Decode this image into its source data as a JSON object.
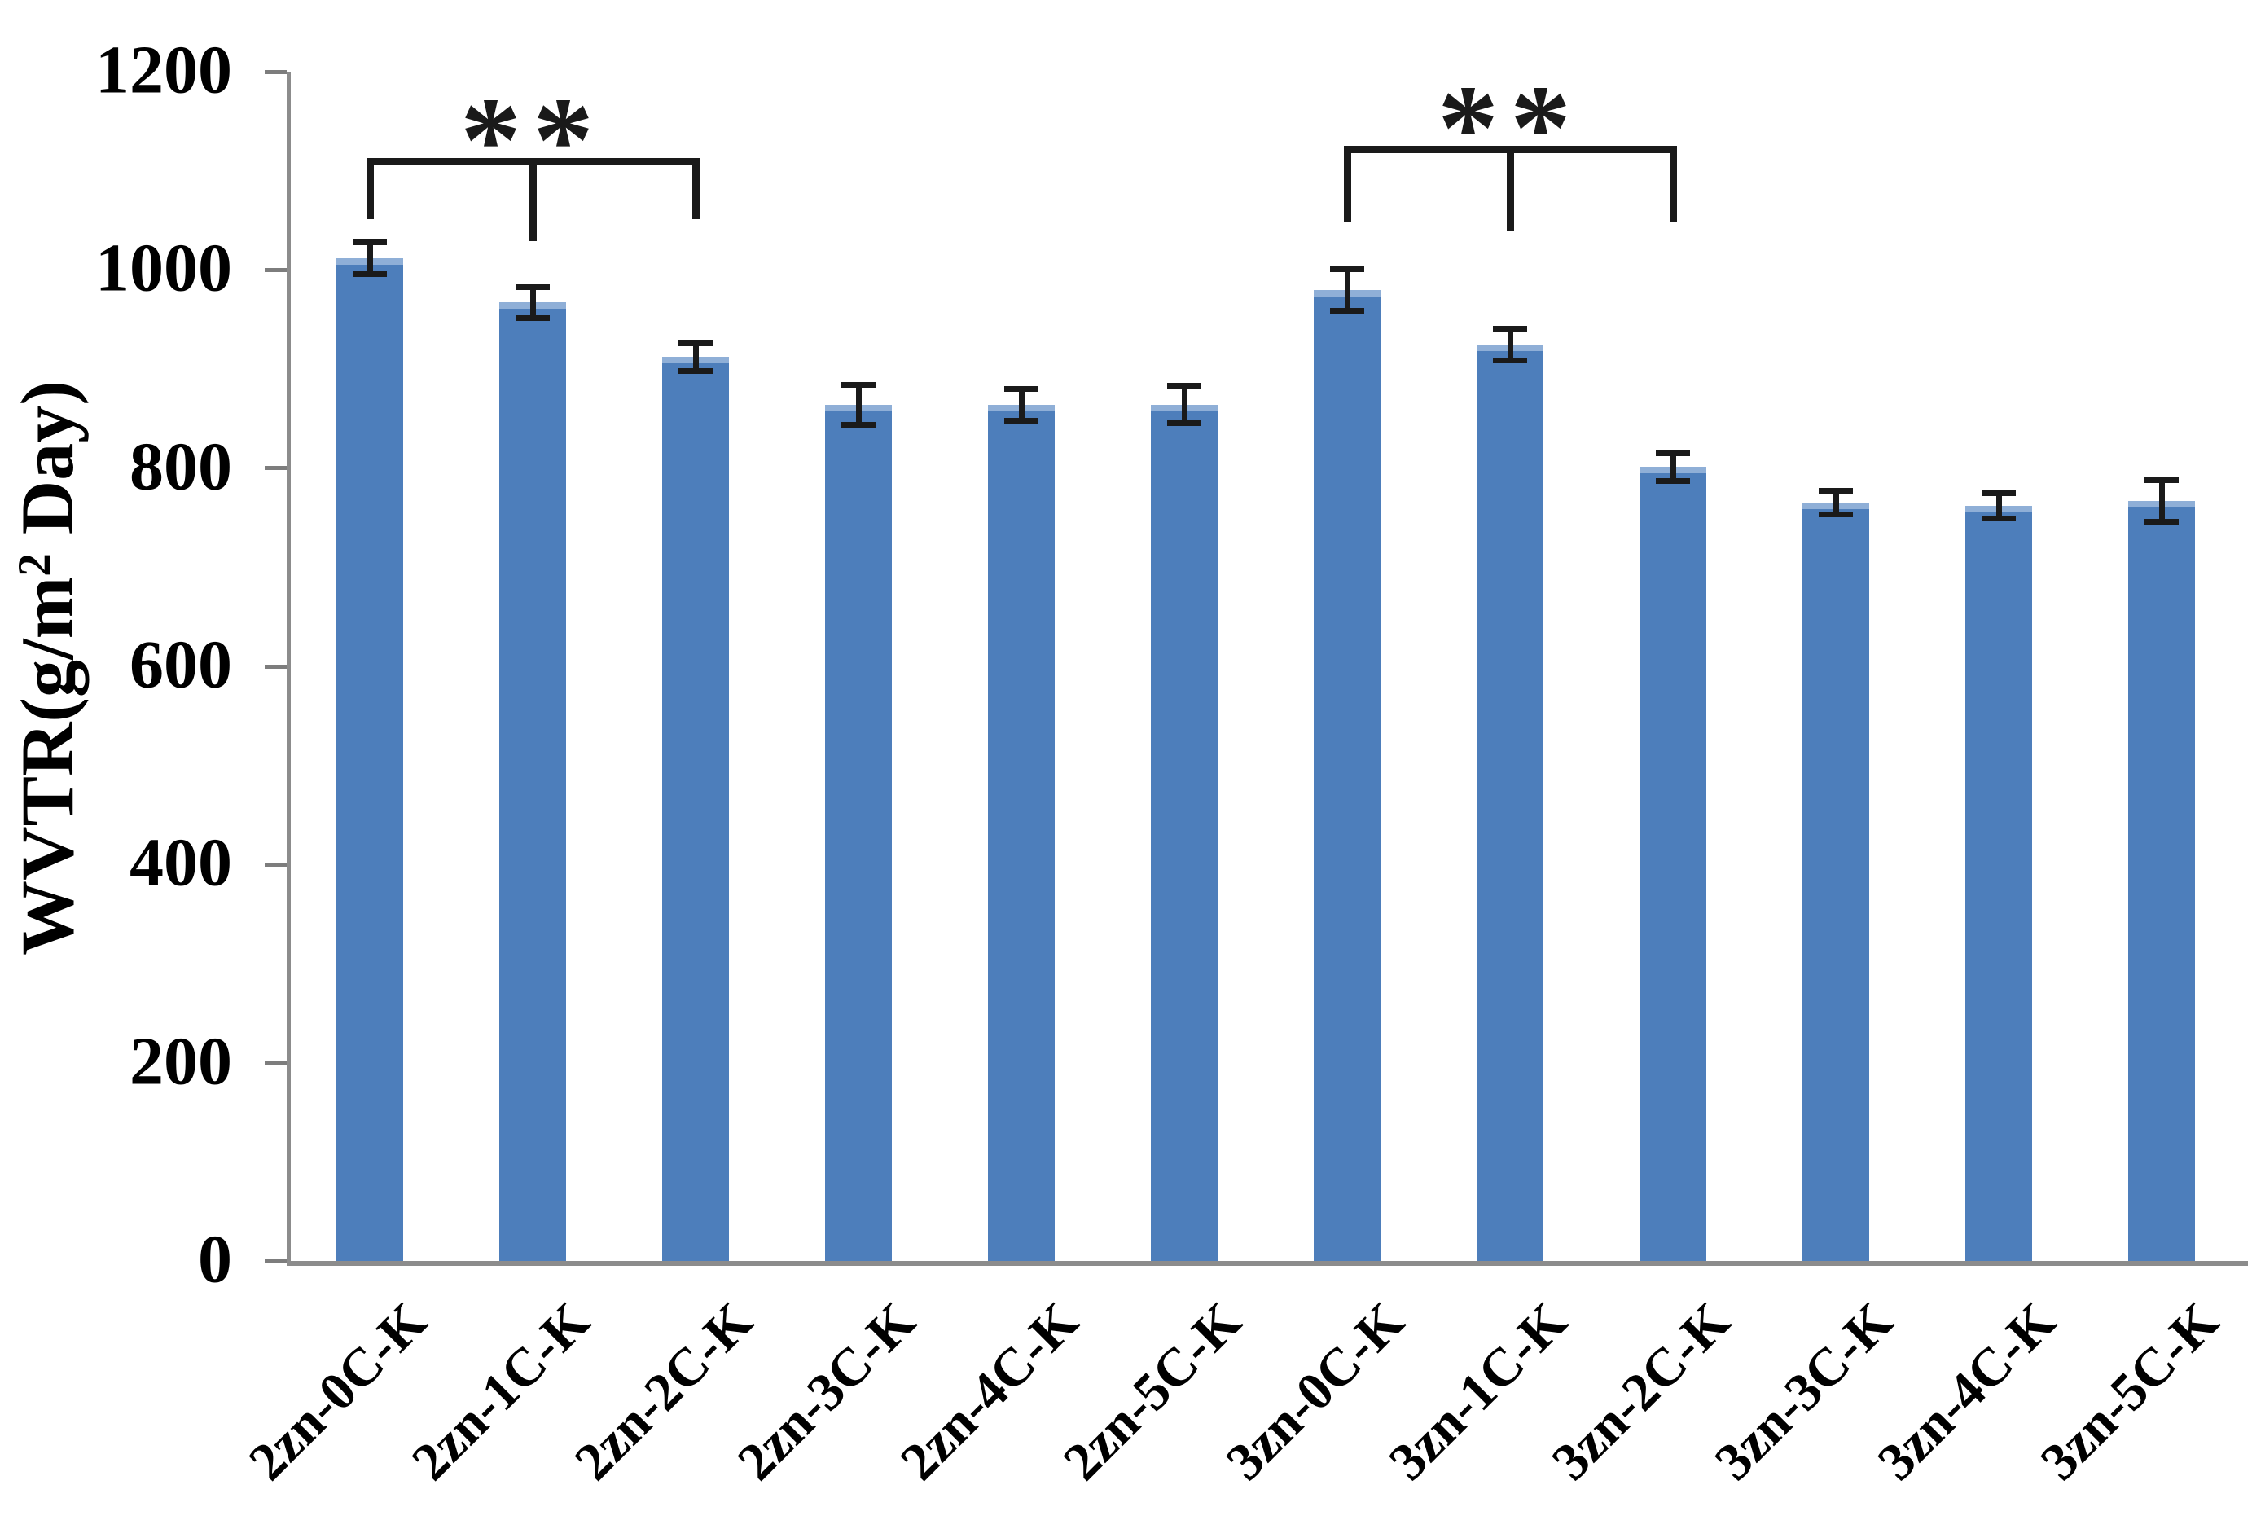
{
  "chart_data": {
    "type": "bar",
    "title": "",
    "ylabel": "WVTR(g/m² Day)",
    "ylabel_parts": {
      "prefix": "WVTR(g/m",
      "superscript": "2",
      "suffix": " Day)"
    },
    "xlabel": "",
    "ylim": [
      0,
      1200
    ],
    "ytick_step": 200,
    "yticks": [
      0,
      200,
      400,
      600,
      800,
      1000,
      1200
    ],
    "grid": false,
    "legend": false,
    "categories": [
      "2zn-0C-K",
      "2zn-1C-K",
      "2zn-2C-K",
      "2zn-3C-K",
      "2zn-4C-K",
      "2zn-5C-K",
      "3zn-0C-K",
      "3zn-1C-K",
      "3zn-2C-K",
      "3zn-3C-K",
      "3zn-4C-K",
      "3zn-5C-K"
    ],
    "values": [
      1012,
      967,
      912,
      864,
      864,
      864,
      980,
      925,
      801,
      765,
      762,
      767
    ],
    "errors": [
      16,
      16,
      14,
      20,
      16,
      19,
      21,
      16,
      14,
      12,
      13,
      21
    ],
    "bar_color": "#4d7ebb",
    "bar_edge_color": "#8fafd7",
    "axis_color": "#8c8c8c",
    "annotation_color": "#1a1a1a",
    "significance": [
      {
        "label": "**",
        "from_index": 0,
        "mid_index": 1,
        "to_index": 2,
        "line_value": 1113,
        "side_end_value": 1051,
        "mid_end_value": 1029
      },
      {
        "label": "**",
        "from_index": 6,
        "mid_index": 7,
        "to_index": 8,
        "line_value": 1125,
        "side_end_value": 1049,
        "mid_end_value": 1040
      }
    ]
  }
}
